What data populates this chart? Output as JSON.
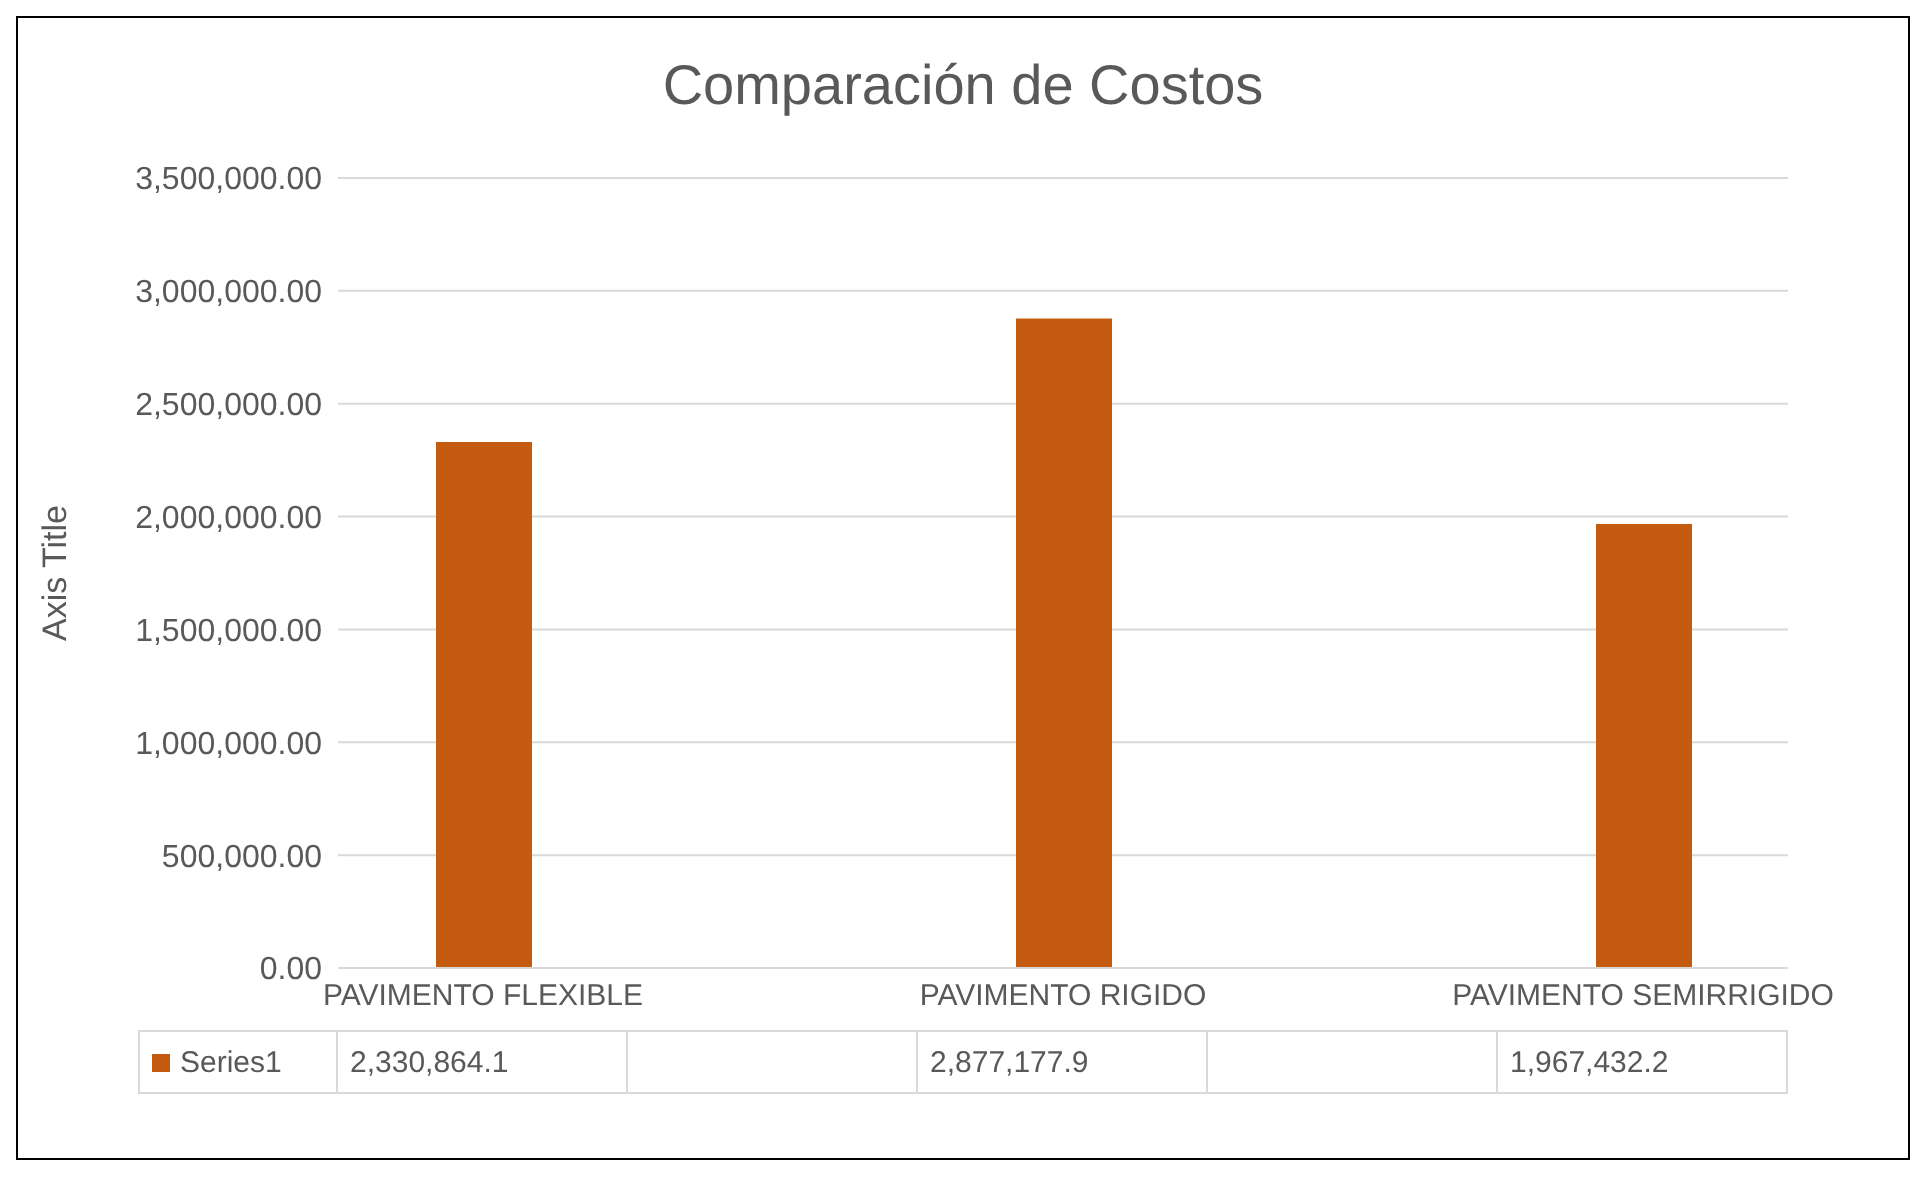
{
  "chart_data": {
    "type": "bar",
    "title": "Comparación de Costos",
    "ylabel": "Axis Title",
    "categories": [
      "PAVIMENTO FLEXIBLE",
      null,
      "PAVIMENTO RIGIDO",
      null,
      "PAVIMENTO SEMIRRIGIDO"
    ],
    "series": [
      {
        "name": "Series1",
        "color": "#c55a11",
        "values": [
          2330864.1,
          null,
          2877177.9,
          null,
          1967432.2
        ],
        "value_labels": [
          "2,330,864.1",
          null,
          "2,877,177.9",
          null,
          "1,967,432.2"
        ]
      }
    ],
    "ylim": [
      0,
      3500000
    ],
    "yticks": [
      {
        "value": 0,
        "label": "0.00"
      },
      {
        "value": 500000,
        "label": "500,000.00"
      },
      {
        "value": 1000000,
        "label": "1,000,000.00"
      },
      {
        "value": 1500000,
        "label": "1,500,000.00"
      },
      {
        "value": 2000000,
        "label": "2,000,000.00"
      },
      {
        "value": 2500000,
        "label": "2,500,000.00"
      },
      {
        "value": 3000000,
        "label": "3,000,000.00"
      },
      {
        "value": 3500000,
        "label": "3,500,000.00"
      }
    ],
    "grid": "y"
  }
}
